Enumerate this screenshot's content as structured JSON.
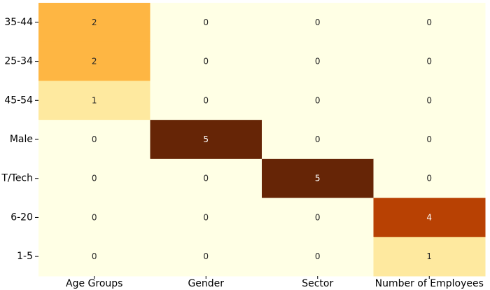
{
  "chart_data": {
    "type": "heatmap",
    "title": "",
    "xlabel": "",
    "ylabel": "",
    "x_categories": [
      "Age Groups",
      "Gender",
      "Sector",
      "Number of Employees"
    ],
    "y_categories": [
      "35-44",
      "25-34",
      "45-54",
      "Male",
      "T/Tech",
      "6-20",
      "1-5"
    ],
    "values": [
      [
        2,
        0,
        0,
        0
      ],
      [
        2,
        0,
        0,
        0
      ],
      [
        1,
        0,
        0,
        0
      ],
      [
        0,
        5,
        0,
        0
      ],
      [
        0,
        0,
        5,
        0
      ],
      [
        0,
        0,
        0,
        4
      ],
      [
        0,
        0,
        0,
        1
      ]
    ],
    "value_range": [
      0,
      5
    ],
    "colormap": "YlOrBr",
    "colors": {
      "0": "#ffffe5",
      "1": "#fee99f",
      "2": "#feb643",
      "4": "#b84103",
      "5": "#662506"
    },
    "annotated": true,
    "grid": false,
    "legend": "none"
  }
}
